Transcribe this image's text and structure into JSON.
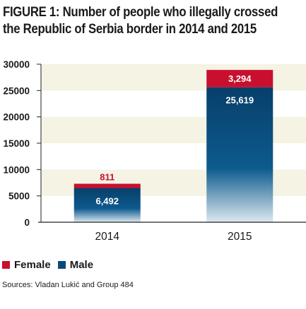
{
  "chart_data": {
    "type": "bar",
    "stacked": true,
    "title_line1": "FIGURE 1: Number of people who illegally crossed",
    "title_line2": "the Republic of Serbia border in 2014 and 2015",
    "categories": [
      "2014",
      "2015"
    ],
    "series": [
      {
        "name": "Male",
        "values": [
          6492,
          25619
        ],
        "labels": [
          "6,492",
          "25,619"
        ],
        "color": "#0b4a78"
      },
      {
        "name": "Female",
        "values": [
          811,
          3294
        ],
        "labels": [
          "811",
          "3,294"
        ],
        "color": "#c8102e"
      }
    ],
    "ylim": [
      0,
      30000
    ],
    "yticks": [
      0,
      5000,
      10000,
      15000,
      20000,
      25000,
      30000
    ],
    "ytick_labels": [
      "0",
      "5000",
      "10000",
      "15000",
      "20000",
      "25000",
      "30000"
    ],
    "grid": "alternating horizontal bands",
    "band_color": "#f4f3e4",
    "legend_position": "bottom-left",
    "source": "Sources: Vladan Lukić and Group 484"
  }
}
